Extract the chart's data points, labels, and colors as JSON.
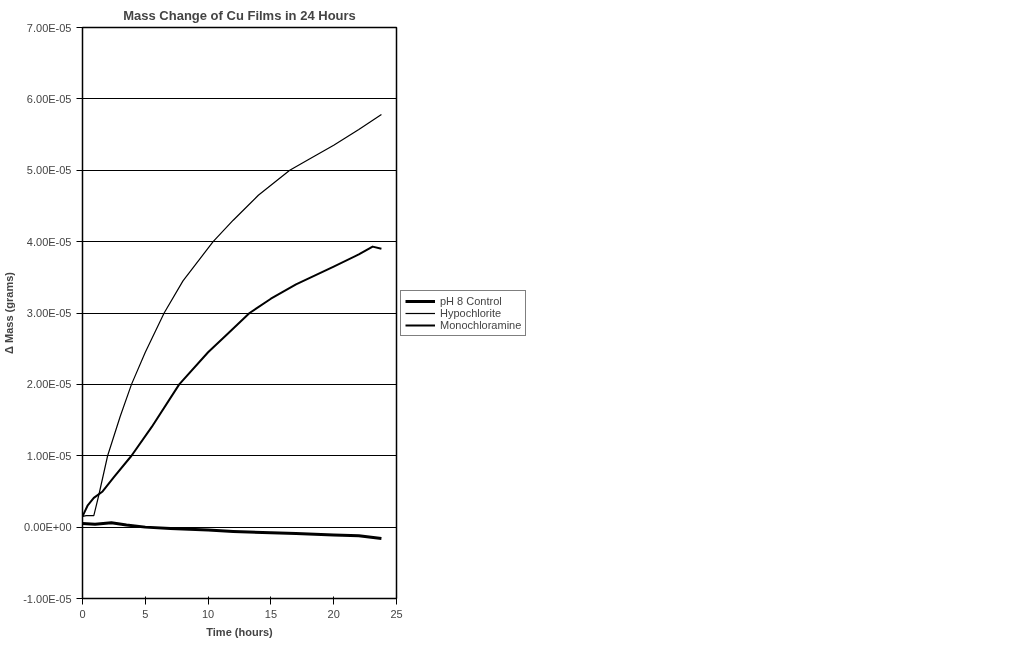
{
  "chart_data": {
    "type": "line",
    "title": "Mass Change of Cu Films in 24 Hours",
    "xlabel": "Time (hours)",
    "ylabel": "Δ Mass (grams)",
    "xlim": [
      0,
      25
    ],
    "xticks": [
      0,
      5,
      10,
      15,
      20,
      25
    ],
    "ylim": [
      -1e-05,
      7e-05
    ],
    "yticks": [
      {
        "value": -1e-05,
        "label": "-1.00E-05"
      },
      {
        "value": 0,
        "label": "0.00E+00"
      },
      {
        "value": 1e-05,
        "label": "1.00E-05"
      },
      {
        "value": 2e-05,
        "label": "2.00E-05"
      },
      {
        "value": 3e-05,
        "label": "3.00E-05"
      },
      {
        "value": 4e-05,
        "label": "4.00E-05"
      },
      {
        "value": 5e-05,
        "label": "5.00E-05"
      },
      {
        "value": 6e-05,
        "label": "6.00E-05"
      },
      {
        "value": 7e-05,
        "label": "7.00E-05"
      }
    ],
    "grid": "y",
    "legend": "right",
    "marker": "none",
    "line_style": "solid",
    "series": [
      {
        "name": "pH 8 Control",
        "color": "#000000",
        "x": [
          0,
          1,
          2.3,
          3.5,
          5,
          7,
          10,
          12,
          15,
          17,
          20,
          22,
          23.8
        ],
        "values": [
          5e-07,
          4e-07,
          6e-07,
          3e-07,
          0,
          -2e-07,
          -4e-07,
          -6e-07,
          -8e-07,
          -9e-07,
          -1.1e-06,
          -1.2e-06,
          -1.6e-06
        ]
      },
      {
        "name": "Hypochlorite",
        "color": "#000000",
        "x": [
          0,
          0.3,
          0.9,
          1.3,
          2.0,
          3.0,
          3.9,
          5,
          6.5,
          8,
          10.4,
          12,
          14,
          16.5,
          18,
          20,
          22,
          23.8
        ],
        "values": [
          1.5e-06,
          1.6e-06,
          1.6e-06,
          4.5e-06,
          1e-05,
          1.55e-05,
          2e-05,
          2.45e-05,
          3e-05,
          3.45e-05,
          4e-05,
          4.3e-05,
          4.65e-05,
          5e-05,
          5.15e-05,
          5.35e-05,
          5.57e-05,
          5.78e-05
        ]
      },
      {
        "name": "Monochloramine",
        "color": "#000000",
        "x": [
          0,
          0.4,
          0.9,
          1.6,
          2.5,
          3.9,
          5.5,
          7.7,
          10,
          11.5,
          13.3,
          15,
          17,
          20,
          22,
          23.1,
          23.8
        ],
        "values": [
          1.5e-06,
          3e-06,
          4.1e-06,
          5e-06,
          7e-06,
          1e-05,
          1.4e-05,
          2e-05,
          2.45e-05,
          2.7e-05,
          3e-05,
          3.2e-05,
          3.4e-05,
          3.65e-05,
          3.82e-05,
          3.93e-05,
          3.9e-05
        ]
      }
    ]
  }
}
